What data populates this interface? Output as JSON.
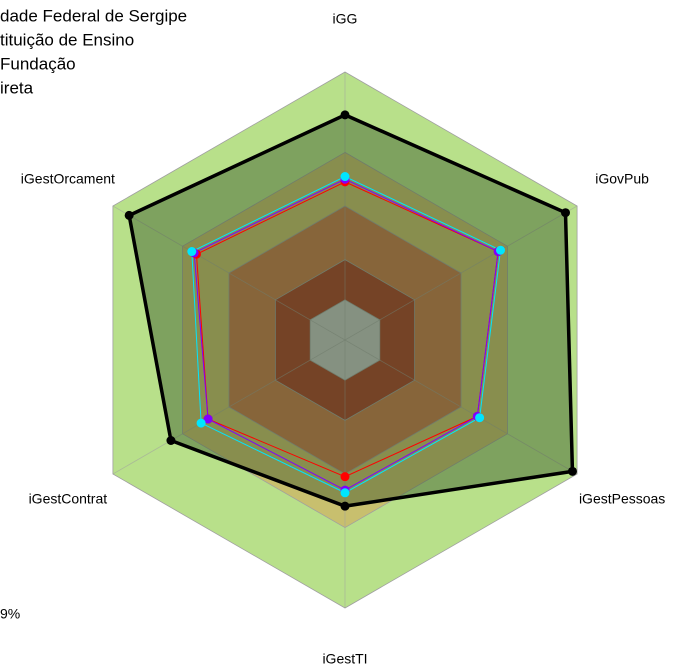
{
  "chart_data": {
    "type": "radar",
    "categories": [
      "iGG",
      "iGovPub",
      "iGestPessoas",
      "iGestTI",
      "iGestContrat",
      "iGestOrcament"
    ],
    "rlim": [
      0,
      100
    ],
    "bands": [
      {
        "value": 100,
        "color": "#b8e08a"
      },
      {
        "value": 70,
        "color": "#c8bf6e"
      },
      {
        "value": 50,
        "color": "#c67a4e"
      },
      {
        "value": 30,
        "color": "#a9422c"
      },
      {
        "value": 15,
        "color": "#c4c4c4"
      }
    ],
    "series": [
      {
        "name": "dade Federal de Sergipe",
        "color": "#000000",
        "values": [
          84,
          95,
          98,
          62,
          75,
          93
        ]
      },
      {
        "name": "tituição de Ensino",
        "color": "#ff0000",
        "values": [
          59,
          66,
          57,
          51,
          59,
          64
        ]
      },
      {
        "name": "Fundação",
        "color": "#7f00ff",
        "values": [
          60,
          66,
          57,
          56,
          59,
          65
        ]
      },
      {
        "name": "ireta",
        "color": "#00e5ff",
        "values": [
          61,
          67,
          58,
          57,
          62,
          66
        ]
      }
    ],
    "annotation": "9%"
  }
}
